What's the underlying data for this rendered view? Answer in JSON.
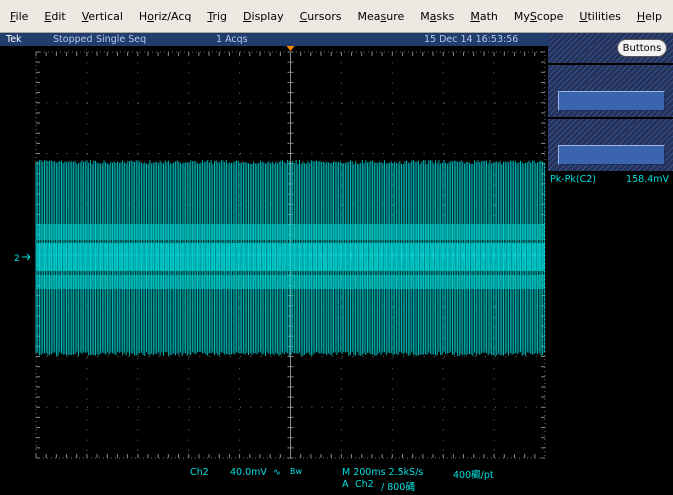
{
  "menu": [
    {
      "label": "File",
      "ul": "F",
      "rest": "ile"
    },
    {
      "label": "Edit",
      "ul": "E",
      "rest": "dit"
    },
    {
      "label": "Vertical",
      "ul": "V",
      "rest": "ertical"
    },
    {
      "label": "Horiz/Acq",
      "pre": "H",
      "ul": "o",
      "rest": "riz/Acq"
    },
    {
      "label": "Trig",
      "ul": "T",
      "rest": "rig"
    },
    {
      "label": "Display",
      "ul": "D",
      "rest": "isplay"
    },
    {
      "label": "Cursors",
      "ul": "C",
      "rest": "ursors"
    },
    {
      "label": "Measure",
      "pre": "Mea",
      "ul": "s",
      "rest": "ure"
    },
    {
      "label": "Masks",
      "pre": "M",
      "ul": "a",
      "rest": "sks"
    },
    {
      "label": "Math",
      "ul": "M",
      "rest": "ath"
    },
    {
      "label": "MyScope",
      "pre": "My",
      "ul": "S",
      "rest": "cope"
    },
    {
      "label": "Utilities",
      "ul": "U",
      "rest": "tilities"
    },
    {
      "label": "Help",
      "ul": "H",
      "rest": "elp"
    }
  ],
  "status": {
    "brand": "Tek",
    "state": "Stopped",
    "mode": "Single Seq",
    "acqs": "1 Acqs",
    "datetime": "15 Dec 14 16:53:56"
  },
  "side": {
    "buttons_label": "Buttons",
    "measurement": {
      "label": "Pk-Pk(C2)",
      "value": "158.4mV"
    }
  },
  "channel_marker": "2",
  "bottom": {
    "ch": "Ch2",
    "scale": "40.0mV",
    "coupling": "&#x2248;",
    "bw": "Bw",
    "timebase": "M 200ms 2.5kS/s",
    "record": "400欟/pt",
    "trig_a": "A",
    "trig_ch": "Ch2",
    "trig_level": "∕ 800硧"
  },
  "colors": {
    "trace": "#00d8d8",
    "grid": "#707070",
    "menu_bg": "#ece9e3",
    "status_bg": "#213d6e",
    "readout": "#00e0e0"
  }
}
